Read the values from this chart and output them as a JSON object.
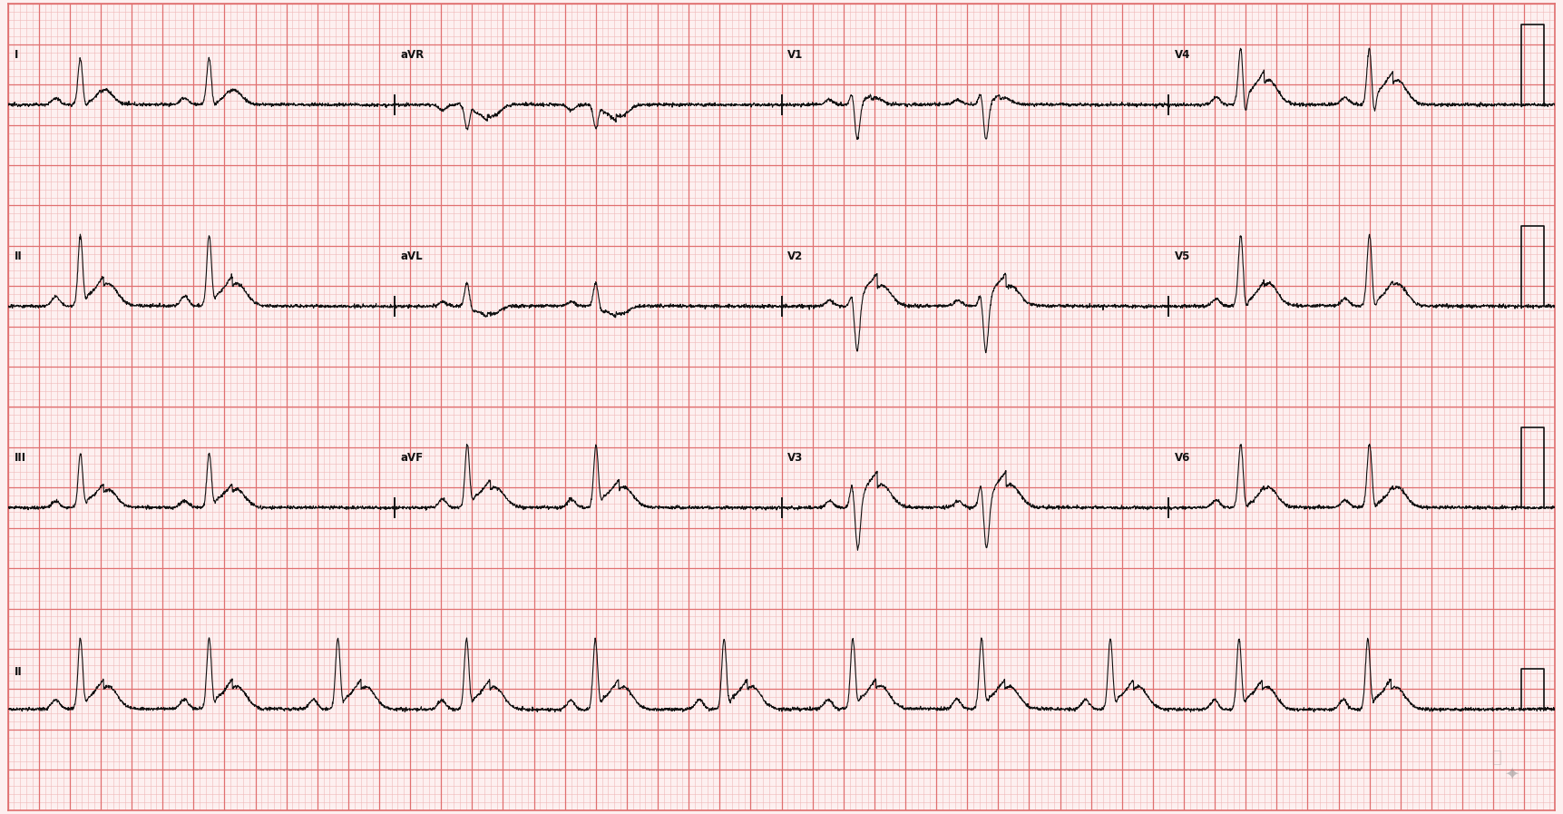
{
  "bg_color": "#fdf0f0",
  "grid_minor_color": "#f0b8b8",
  "grid_major_color": "#e07070",
  "ecg_color": "#111111",
  "fig_width": 17.23,
  "fig_height": 8.97,
  "dpi": 100,
  "hr": 72,
  "row_labels_r1": [
    "I",
    "aVR",
    "V1",
    "V4"
  ],
  "row_labels_r2": [
    "II",
    "aVL",
    "V2",
    "V5"
  ],
  "row_labels_r3": [
    "III",
    "aVF",
    "V3",
    "V6"
  ],
  "row_labels_r4": [
    "II"
  ]
}
